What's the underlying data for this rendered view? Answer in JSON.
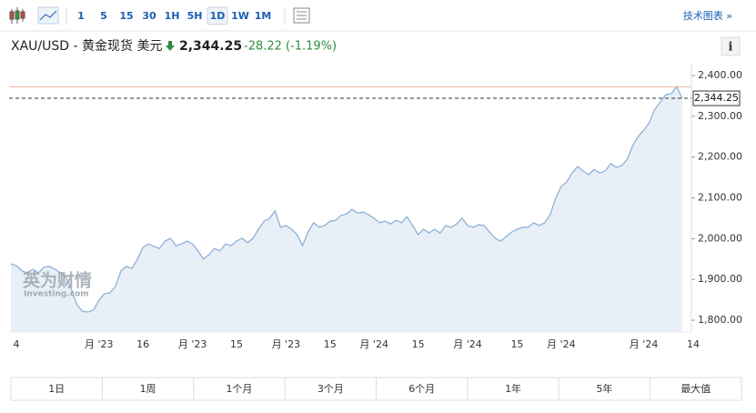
{
  "toolbar": {
    "intervals": [
      "1",
      "5",
      "15",
      "30",
      "1H",
      "5H",
      "1D",
      "1W",
      "1M"
    ],
    "selected_index": 6,
    "technical_link": "技术图表 »"
  },
  "header": {
    "instrument": "XAU/USD - 黄金现货 美元",
    "price": "2,344.25",
    "change": "-28.22",
    "change_percent": "(-1.19%)",
    "info_icon": "i"
  },
  "watermark": {
    "brand": "英为财情",
    "site": "Investing.com"
  },
  "chart_data": {
    "type": "line",
    "series": [
      {
        "name": "XAU/USD",
        "color": "#8fb1d8",
        "fill": "#e9eff7",
        "values": [
          1938,
          1934,
          1921,
          1916,
          1925,
          1916,
          1930,
          1932,
          1925,
          1916,
          1905,
          1876,
          1838,
          1822,
          1820,
          1825,
          1849,
          1865,
          1867,
          1883,
          1921,
          1932,
          1927,
          1950,
          1979,
          1987,
          1981,
          1976,
          1994,
          2001,
          1983,
          1987,
          1994,
          1987,
          1970,
          1950,
          1961,
          1976,
          1970,
          1987,
          1983,
          1994,
          2001,
          1990,
          2001,
          2023,
          2043,
          2050,
          2068,
          2028,
          2032,
          2023,
          2010,
          1983,
          2016,
          2039,
          2028,
          2032,
          2043,
          2045,
          2057,
          2061,
          2072,
          2063,
          2065,
          2059,
          2050,
          2039,
          2043,
          2036,
          2045,
          2039,
          2054,
          2032,
          2010,
          2023,
          2014,
          2023,
          2014,
          2032,
          2028,
          2036,
          2050,
          2032,
          2028,
          2034,
          2032,
          2016,
          2001,
          1994,
          2005,
          2016,
          2023,
          2028,
          2028,
          2039,
          2032,
          2039,
          2059,
          2099,
          2128,
          2139,
          2161,
          2177,
          2166,
          2157,
          2170,
          2161,
          2166,
          2184,
          2175,
          2179,
          2195,
          2228,
          2251,
          2266,
          2284,
          2317,
          2335,
          2353,
          2355,
          2373,
          2344.25
        ]
      }
    ],
    "xlim": [
      0,
      124
    ],
    "xticks": [
      {
        "value": 1,
        "label": "4"
      },
      {
        "value": 16,
        "label": "月 '23"
      },
      {
        "value": 24,
        "label": "16"
      },
      {
        "value": 33,
        "label": "月 '23"
      },
      {
        "value": 41,
        "label": "15"
      },
      {
        "value": 50,
        "label": "月 '23"
      },
      {
        "value": 58,
        "label": "15"
      },
      {
        "value": 66,
        "label": "月 '24"
      },
      {
        "value": 74,
        "label": "15"
      },
      {
        "value": 83,
        "label": "月 '24"
      },
      {
        "value": 92,
        "label": "15"
      },
      {
        "value": 100,
        "label": "月 '24"
      },
      {
        "value": 115,
        "label": "月 '24"
      },
      {
        "value": 124,
        "label": "14"
      }
    ],
    "ylim": [
      1771,
      2418
    ],
    "yticks": [
      {
        "value": 1800,
        "label": "1,800.00"
      },
      {
        "value": 1900,
        "label": "1,900.00"
      },
      {
        "value": 2000,
        "label": "2,000.00"
      },
      {
        "value": 2100,
        "label": "2,100.00"
      },
      {
        "value": 2200,
        "label": "2,200.00"
      },
      {
        "value": 2300,
        "label": "2,300.00"
      },
      {
        "value": 2400,
        "label": "2,400.00"
      }
    ],
    "reference_line": {
      "value": 2372.47,
      "color": "#f0b49a"
    },
    "price_tag": "2,344.25"
  },
  "ranges": [
    "1日",
    "1周",
    "1个月",
    "3个月",
    "6个月",
    "1年",
    "5年",
    "最大值"
  ]
}
